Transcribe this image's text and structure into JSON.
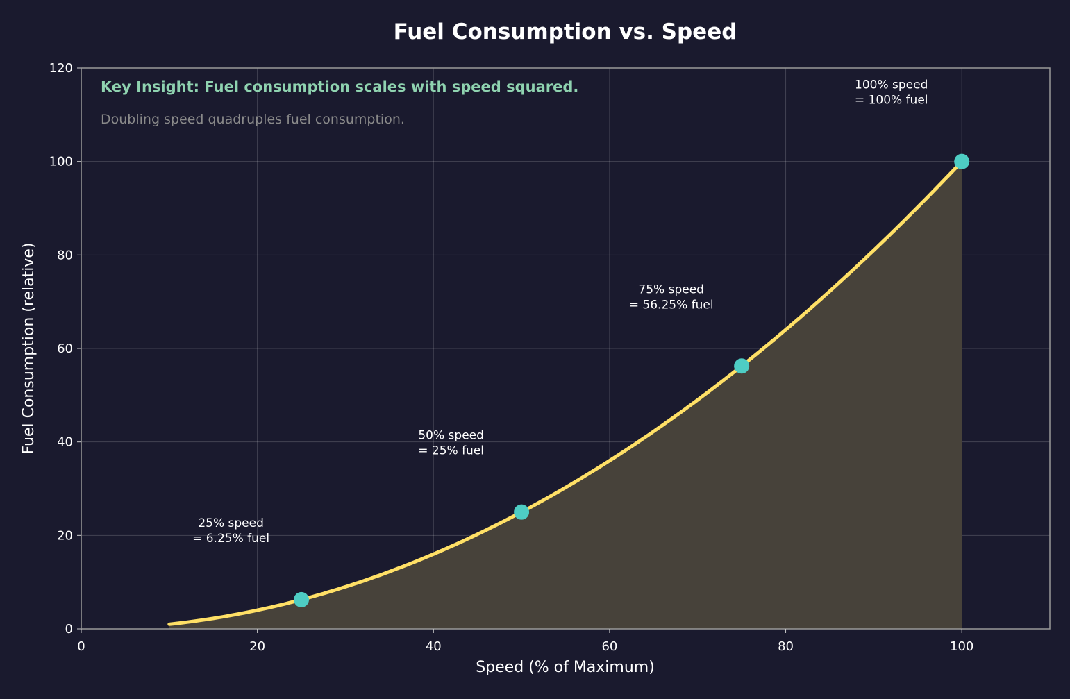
{
  "chart_data": {
    "type": "line",
    "title": "Fuel Consumption vs. Speed",
    "xlabel": "Speed (% of Maximum)",
    "ylabel": "Fuel Consumption (relative)",
    "xlim": [
      0,
      110
    ],
    "ylim": [
      0,
      120
    ],
    "xticks": [
      0,
      20,
      40,
      60,
      80,
      100
    ],
    "yticks": [
      0,
      20,
      40,
      60,
      80,
      100,
      120
    ],
    "grid": true,
    "curve": {
      "formula": "y = x^2 / 100",
      "x_start": 10,
      "x_end": 100,
      "filled": true
    },
    "points": [
      {
        "x": 25,
        "y": 6.25,
        "label_line1": "25% speed",
        "label_line2": "= 6.25% fuel"
      },
      {
        "x": 50,
        "y": 25,
        "label_line1": "50% speed",
        "label_line2": "= 25% fuel"
      },
      {
        "x": 75,
        "y": 56.25,
        "label_line1": "75% speed",
        "label_line2": "= 56.25% fuel"
      },
      {
        "x": 100,
        "y": 100,
        "label_line1": "100% speed",
        "label_line2": "= 100% fuel"
      }
    ],
    "insight_title": "Key Insight: Fuel consumption scales with speed squared.",
    "insight_text": "Doubling speed quadruples fuel consumption.",
    "colors": {
      "background": "#1a1a2e",
      "curve": "#ffe066",
      "fill": "#47423a",
      "markers": "#4ecdc4",
      "insight_title": "#8fd3b0",
      "insight_text": "#8a8a8a",
      "text": "#ffffff"
    }
  }
}
